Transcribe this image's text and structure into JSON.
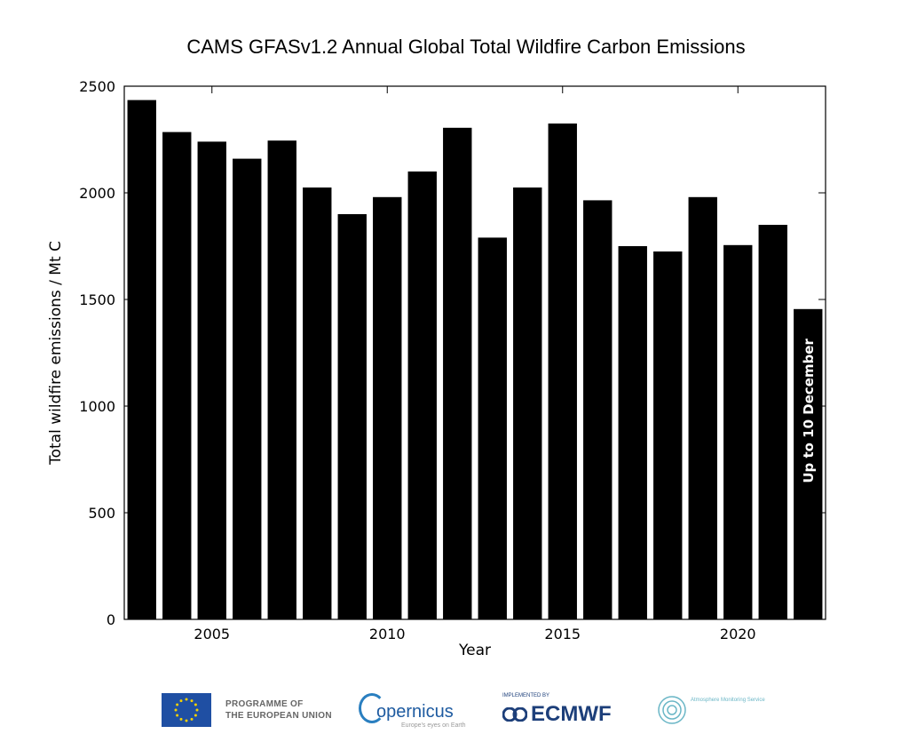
{
  "chart_data": {
    "type": "bar",
    "title": "CAMS GFASv1.2 Annual Global Total Wildfire Carbon Emissions",
    "xlabel": "Year",
    "ylabel": "Total wildfire emissions / Mt C",
    "categories": [
      2003,
      2004,
      2005,
      2006,
      2007,
      2008,
      2009,
      2010,
      2011,
      2012,
      2013,
      2014,
      2015,
      2016,
      2017,
      2018,
      2019,
      2020,
      2021,
      2022
    ],
    "values": [
      2435,
      2285,
      2240,
      2160,
      2245,
      2025,
      1900,
      1980,
      2100,
      2305,
      1790,
      2025,
      2325,
      1965,
      1750,
      1725,
      1980,
      1755,
      1850,
      1455
    ],
    "ylim": [
      0,
      2500
    ],
    "yticks": [
      0,
      500,
      1000,
      1500,
      2000,
      2500
    ],
    "xticks": [
      2005,
      2010,
      2015,
      2020
    ],
    "annotations": [
      {
        "category": 2022,
        "text": "Up to 10 December"
      }
    ],
    "bar_color": "#000000",
    "grid": false
  },
  "footer": {
    "eu_line1": "PROGRAMME OF",
    "eu_line2": "THE EUROPEAN UNION",
    "copernicus": "opernicus",
    "copernicus_sub": "Europe's eyes on Earth",
    "ecmwf_pre": "IMPLEMENTED BY",
    "ecmwf": "ECMWF",
    "cams": "Atmosphere Monitoring Service"
  }
}
